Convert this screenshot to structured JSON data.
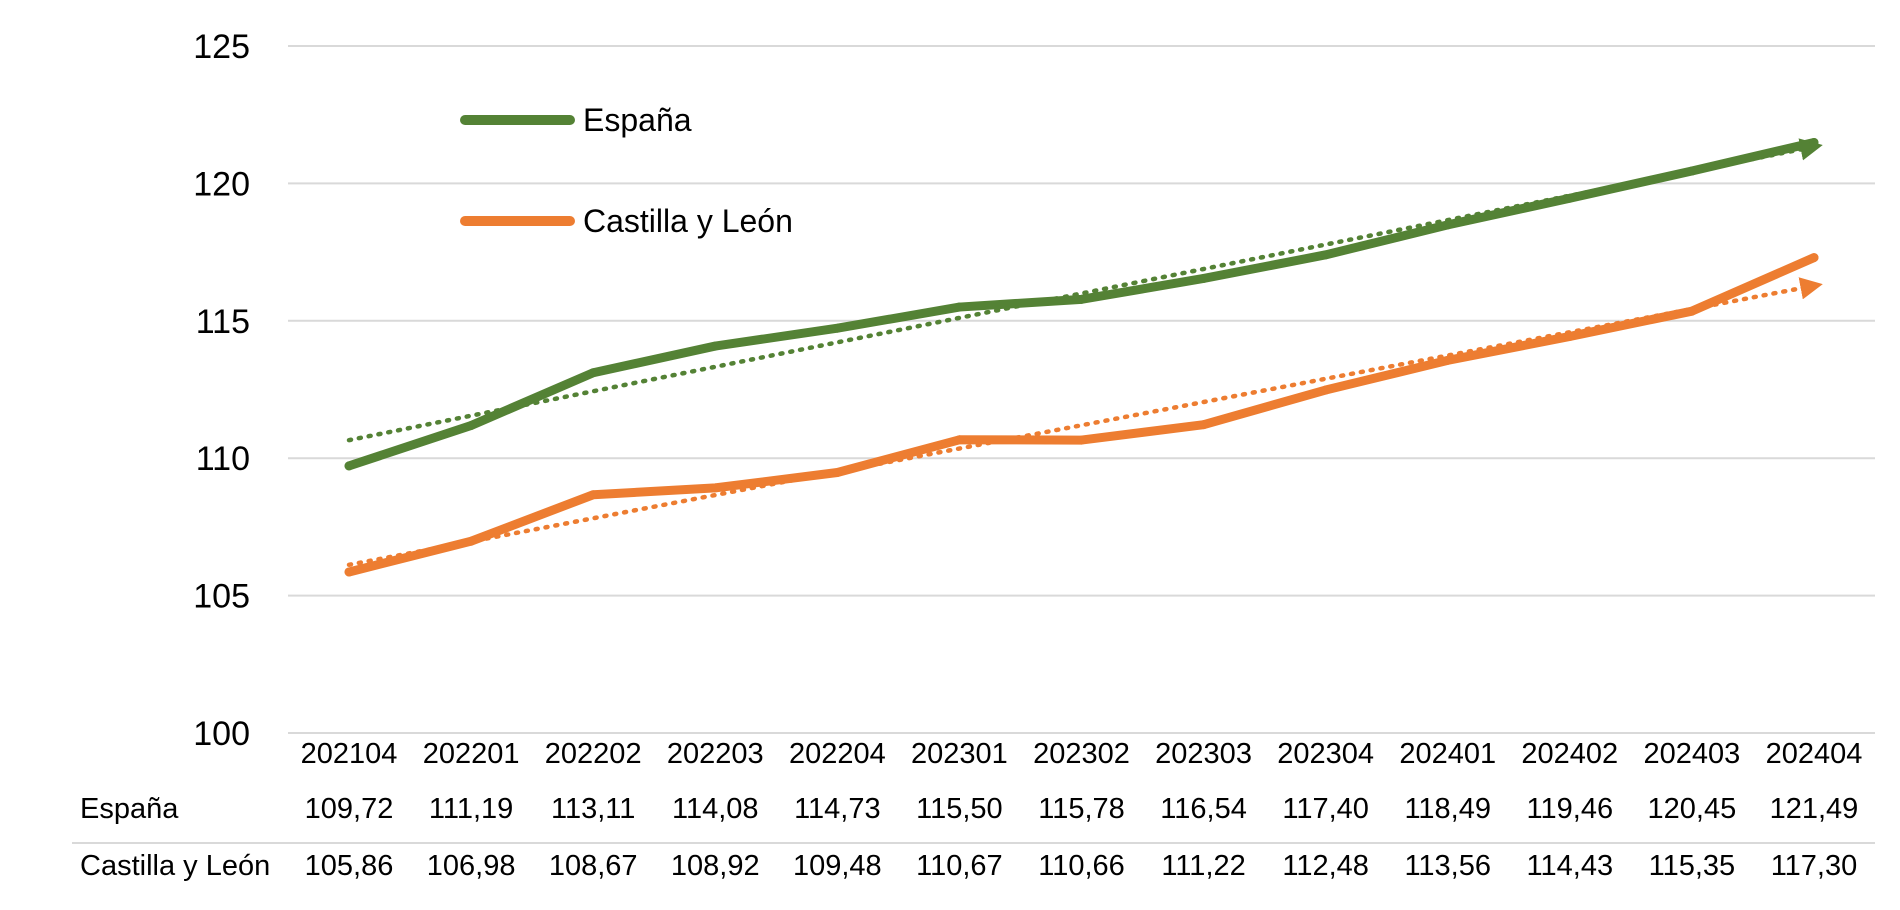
{
  "chart_data": {
    "type": "line",
    "categories": [
      "202104",
      "202201",
      "202202",
      "202203",
      "202204",
      "202301",
      "202302",
      "202303",
      "202304",
      "202401",
      "202402",
      "202403",
      "202404"
    ],
    "ylim": [
      100,
      125
    ],
    "yticks": [
      100,
      105,
      110,
      115,
      120,
      125
    ],
    "grid": true,
    "legend_position": "top-left",
    "series": [
      {
        "name": "España",
        "color": "#548235",
        "values": [
          109.72,
          111.19,
          113.11,
          114.08,
          114.73,
          115.5,
          115.78,
          116.54,
          117.4,
          118.49,
          119.46,
          120.45,
          121.49
        ],
        "labels": [
          "109,72",
          "111,19",
          "113,11",
          "114,08",
          "114,73",
          "115,50",
          "115,78",
          "116,54",
          "117,40",
          "118,49",
          "119,46",
          "120,45",
          "121,49"
        ],
        "trendline": "dotted linear"
      },
      {
        "name": "Castilla y León",
        "color": "#ED7D31",
        "values": [
          105.86,
          106.98,
          108.67,
          108.92,
          109.48,
          110.67,
          110.66,
          111.22,
          112.48,
          113.56,
          114.43,
          115.35,
          117.3
        ],
        "labels": [
          "105,86",
          "106,98",
          "108,67",
          "108,92",
          "109,48",
          "110,67",
          "110,66",
          "111,22",
          "112,48",
          "113,56",
          "114,43",
          "115,35",
          "117,30"
        ],
        "trendline": "dotted linear"
      }
    ]
  }
}
